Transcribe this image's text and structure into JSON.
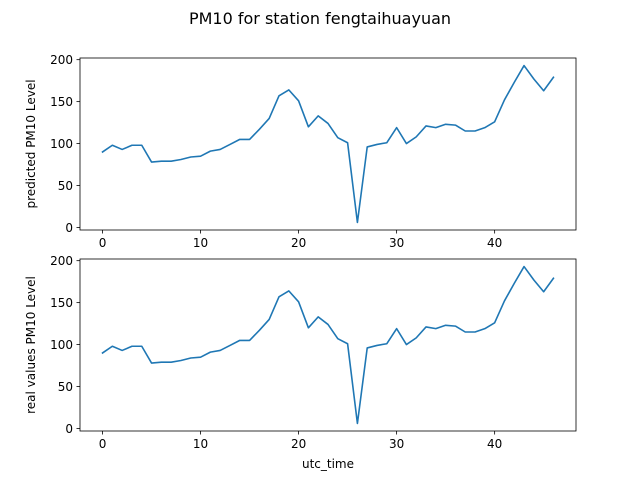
{
  "figure": {
    "title": "PM10 for station fengtaihuayuan"
  },
  "chart_data": [
    {
      "type": "line",
      "title": "",
      "xlabel": "",
      "ylabel": "predicted PM10 Level",
      "xlim": [
        -2.3,
        48.3
      ],
      "ylim": [
        -3,
        202
      ],
      "xticks": [
        0,
        10,
        20,
        30,
        40
      ],
      "yticks": [
        0,
        50,
        100,
        150,
        200
      ],
      "grid": false,
      "color": "#1f77b4",
      "series": [
        {
          "x": [
            0,
            1,
            2,
            3,
            4,
            5,
            6,
            7,
            8,
            9,
            10,
            11,
            12,
            13,
            14,
            15,
            16,
            17,
            18,
            19,
            20,
            21,
            22,
            23,
            24,
            25,
            26,
            27,
            28,
            29,
            30,
            31,
            32,
            33,
            34,
            35,
            36,
            37,
            38,
            39,
            40,
            41,
            42,
            43,
            44,
            45,
            46
          ],
          "values": [
            90,
            98,
            93,
            98,
            98,
            78,
            79,
            79,
            81,
            84,
            85,
            91,
            93,
            99,
            105,
            105,
            117,
            130,
            157,
            164,
            151,
            120,
            133,
            124,
            107,
            101,
            6,
            96,
            99,
            101,
            119,
            100,
            108,
            121,
            119,
            123,
            122,
            115,
            115,
            119,
            126,
            152,
            173,
            193,
            177,
            163,
            179
          ]
        }
      ]
    },
    {
      "type": "line",
      "title": "",
      "xlabel": "utc_time",
      "ylabel": "real values PM10 Level",
      "xlim": [
        -2.3,
        48.3
      ],
      "ylim": [
        -3,
        202
      ],
      "xticks": [
        0,
        10,
        20,
        30,
        40
      ],
      "yticks": [
        0,
        50,
        100,
        150,
        200
      ],
      "grid": false,
      "color": "#1f77b4",
      "series": [
        {
          "x": [
            0,
            1,
            2,
            3,
            4,
            5,
            6,
            7,
            8,
            9,
            10,
            11,
            12,
            13,
            14,
            15,
            16,
            17,
            18,
            19,
            20,
            21,
            22,
            23,
            24,
            25,
            26,
            27,
            28,
            29,
            30,
            31,
            32,
            33,
            34,
            35,
            36,
            37,
            38,
            39,
            40,
            41,
            42,
            43,
            44,
            45,
            46
          ],
          "values": [
            90,
            98,
            93,
            98,
            98,
            78,
            79,
            79,
            81,
            84,
            85,
            91,
            93,
            99,
            105,
            105,
            117,
            130,
            157,
            164,
            151,
            120,
            133,
            124,
            107,
            101,
            6,
            96,
            99,
            101,
            119,
            100,
            108,
            121,
            119,
            123,
            122,
            115,
            115,
            119,
            126,
            152,
            173,
            193,
            177,
            163,
            179
          ]
        }
      ]
    }
  ]
}
